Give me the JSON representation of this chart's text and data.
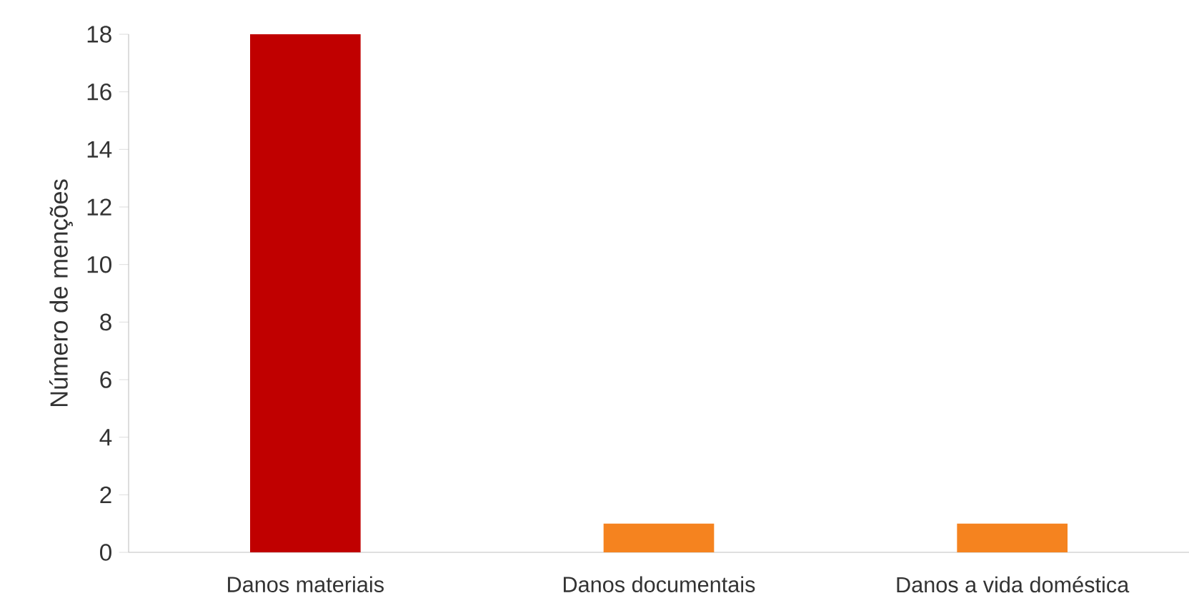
{
  "chart_data": {
    "type": "bar",
    "ylabel": "Número de menções",
    "categories": [
      "Danos materiais",
      "Danos documentais",
      "Danos a vida doméstica"
    ],
    "values": [
      18,
      1,
      1
    ],
    "colors": [
      "#c00000",
      "#f5831f",
      "#f5831f"
    ],
    "ylim": [
      0,
      18
    ],
    "yticks": [
      0,
      2,
      4,
      6,
      8,
      10,
      12,
      14,
      16,
      18
    ],
    "grid": false
  }
}
